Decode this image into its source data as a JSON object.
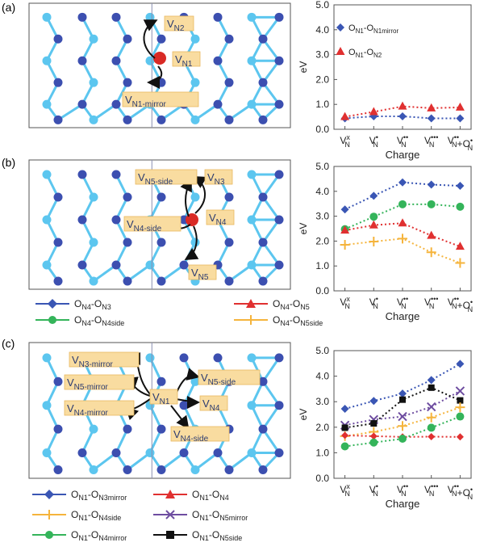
{
  "colors": {
    "blue": "#3a56b4",
    "red": "#e03030",
    "green": "#34b45a",
    "orange": "#f5b43c",
    "purple": "#6e4da0",
    "black": "#111111",
    "atom_dark": "#3c4fb0",
    "atom_light": "#5cc6ef",
    "atom_red": "#d92a25",
    "label_bg": "#f9dca0"
  },
  "panels": {
    "a": {
      "letter": "(a)",
      "struct_labels": {
        "v_n2": "V",
        "v_n2_sub": "N2",
        "v_n1": "V",
        "v_n1_sub": "N1",
        "v_n1_mirror": "V",
        "v_n1_mirror_sub": "N1-mirror"
      }
    },
    "b": {
      "letter": "(b)",
      "struct_labels": {
        "v_n5side": "V",
        "v_n5side_sub": "N5-side",
        "v_n3": "V",
        "v_n3_sub": "N3",
        "v_n4": "V",
        "v_n4_sub": "N4",
        "v_n4side": "V",
        "v_n4side_sub": "N4-side",
        "v_n5": "V",
        "v_n5_sub": "N5"
      },
      "legend": [
        {
          "base": "O",
          "s1": "N4",
          "dash": "-O",
          "s2": "N3"
        },
        {
          "base": "O",
          "s1": "N4",
          "dash": "-O",
          "s2": "N5"
        },
        {
          "base": "O",
          "s1": "N4",
          "dash": "-O",
          "s2": "N4side"
        },
        {
          "base": "O",
          "s1": "N4",
          "dash": "-O",
          "s2": "N5side"
        }
      ]
    },
    "c": {
      "letter": "(c)",
      "struct_labels": {
        "v_n3mirror": "V",
        "v_n3mirror_sub": "N3-mirror",
        "v_n5mirror": "V",
        "v_n5mirror_sub": "N5-mirror",
        "v_n4mirror": "V",
        "v_n4mirror_sub": "N4-mirror",
        "v_n1": "V",
        "v_n1_sub": "N1",
        "v_n5side": "V",
        "v_n5side_sub": "N5-side",
        "v_n4": "V",
        "v_n4_sub": "N4",
        "v_n4side": "V",
        "v_n4side_sub": "N4-side"
      },
      "legend": [
        {
          "base": "O",
          "s1": "N1",
          "dash": "-O",
          "s2": "N3mirror"
        },
        {
          "base": "O",
          "s1": "N1",
          "dash": "-O",
          "s2": "N4"
        },
        {
          "base": "O",
          "s1": "N1",
          "dash": "-O",
          "s2": "N4side"
        },
        {
          "base": "O",
          "s1": "N1",
          "dash": "-O",
          "s2": "N5mirror"
        },
        {
          "base": "O",
          "s1": "N1",
          "dash": "-O",
          "s2": "N4mirror"
        },
        {
          "base": "O",
          "s1": "N1",
          "dash": "-O",
          "s2": "N5side"
        }
      ]
    }
  },
  "chart_data": [
    {
      "panel": "a",
      "type": "line",
      "line_style": "dotted",
      "title": "",
      "xlabel": "Charge",
      "ylabel": "eV",
      "ylim": [
        0,
        5
      ],
      "yticks": [
        "0.0",
        "1.0",
        "2.0",
        "3.0",
        "4.0",
        "5.0"
      ],
      "categories": [
        "V_N^x",
        "V_N^•",
        "V_N^••",
        "V_N^•••",
        "V_N^••+O_N^•"
      ],
      "series": [
        {
          "name": "O_N1-O_N1mirror",
          "color": "#3a56b4",
          "marker": "diamond",
          "values": [
            0.44,
            0.52,
            0.52,
            0.44,
            0.44
          ]
        },
        {
          "name": "O_N1-O_N2",
          "color": "#e03030",
          "marker": "triangle",
          "values": [
            0.5,
            0.7,
            0.92,
            0.85,
            0.88
          ]
        }
      ],
      "legend_position": "top-left"
    },
    {
      "panel": "b",
      "type": "line",
      "line_style": "dotted",
      "title": "",
      "xlabel": "Charge",
      "ylabel": "eV",
      "ylim": [
        0,
        5
      ],
      "yticks": [
        "0.0",
        "1.0",
        "2.0",
        "3.0",
        "4.0",
        "5.0"
      ],
      "categories": [
        "V_N^x",
        "V_N^•",
        "V_N^••",
        "V_N^•••",
        "V_N^••+O_N^•"
      ],
      "series": [
        {
          "name": "O_N4-O_N3",
          "color": "#3a56b4",
          "marker": "diamond",
          "values": [
            3.27,
            3.82,
            4.36,
            4.27,
            4.22
          ]
        },
        {
          "name": "O_N4-O_N4side",
          "color": "#34b45a",
          "marker": "circle",
          "values": [
            2.48,
            2.98,
            3.48,
            3.48,
            3.38
          ]
        },
        {
          "name": "O_N4-O_N5",
          "color": "#e03030",
          "marker": "triangle",
          "values": [
            2.43,
            2.64,
            2.72,
            2.22,
            1.78
          ]
        },
        {
          "name": "O_N4-O_N5side",
          "color": "#f5b43c",
          "marker": "plus",
          "values": [
            1.85,
            1.98,
            2.1,
            1.55,
            1.12
          ]
        }
      ],
      "legend_position": "below"
    },
    {
      "panel": "c",
      "type": "line",
      "line_style": "dotted",
      "title": "",
      "xlabel": "Charge",
      "ylabel": "eV",
      "ylim": [
        0,
        5
      ],
      "yticks": [
        "0.0",
        "1.0",
        "2.0",
        "3.0",
        "4.0",
        "5.0"
      ],
      "categories": [
        "V_N^x",
        "V_N^•",
        "V_N^••",
        "V_N^•••",
        "V_N^••+O_N^•"
      ],
      "series": [
        {
          "name": "O_N1-O_N3mirror",
          "color": "#3a56b4",
          "marker": "diamond",
          "values": [
            2.72,
            3.03,
            3.32,
            3.85,
            4.48
          ]
        },
        {
          "name": "O_N1-O_N5mirror",
          "color": "#6e4da0",
          "marker": "x",
          "values": [
            2.08,
            2.3,
            2.42,
            2.8,
            3.42
          ]
        },
        {
          "name": "O_N1-O_N5side",
          "color": "#111111",
          "marker": "square",
          "values": [
            1.98,
            2.15,
            3.08,
            3.55,
            3.05
          ]
        },
        {
          "name": "O_N1-O_N4side",
          "color": "#f5b43c",
          "marker": "plus",
          "values": [
            1.65,
            1.82,
            2.05,
            2.38,
            2.78
          ]
        },
        {
          "name": "O_N1-O_N4",
          "color": "#e03030",
          "marker": "diamond-small",
          "values": [
            1.68,
            1.65,
            1.62,
            1.63,
            1.62
          ]
        },
        {
          "name": "O_N1-O_N4mirror",
          "color": "#34b45a",
          "marker": "circle",
          "values": [
            1.25,
            1.4,
            1.55,
            1.98,
            2.42
          ]
        }
      ],
      "legend_position": "below"
    }
  ]
}
